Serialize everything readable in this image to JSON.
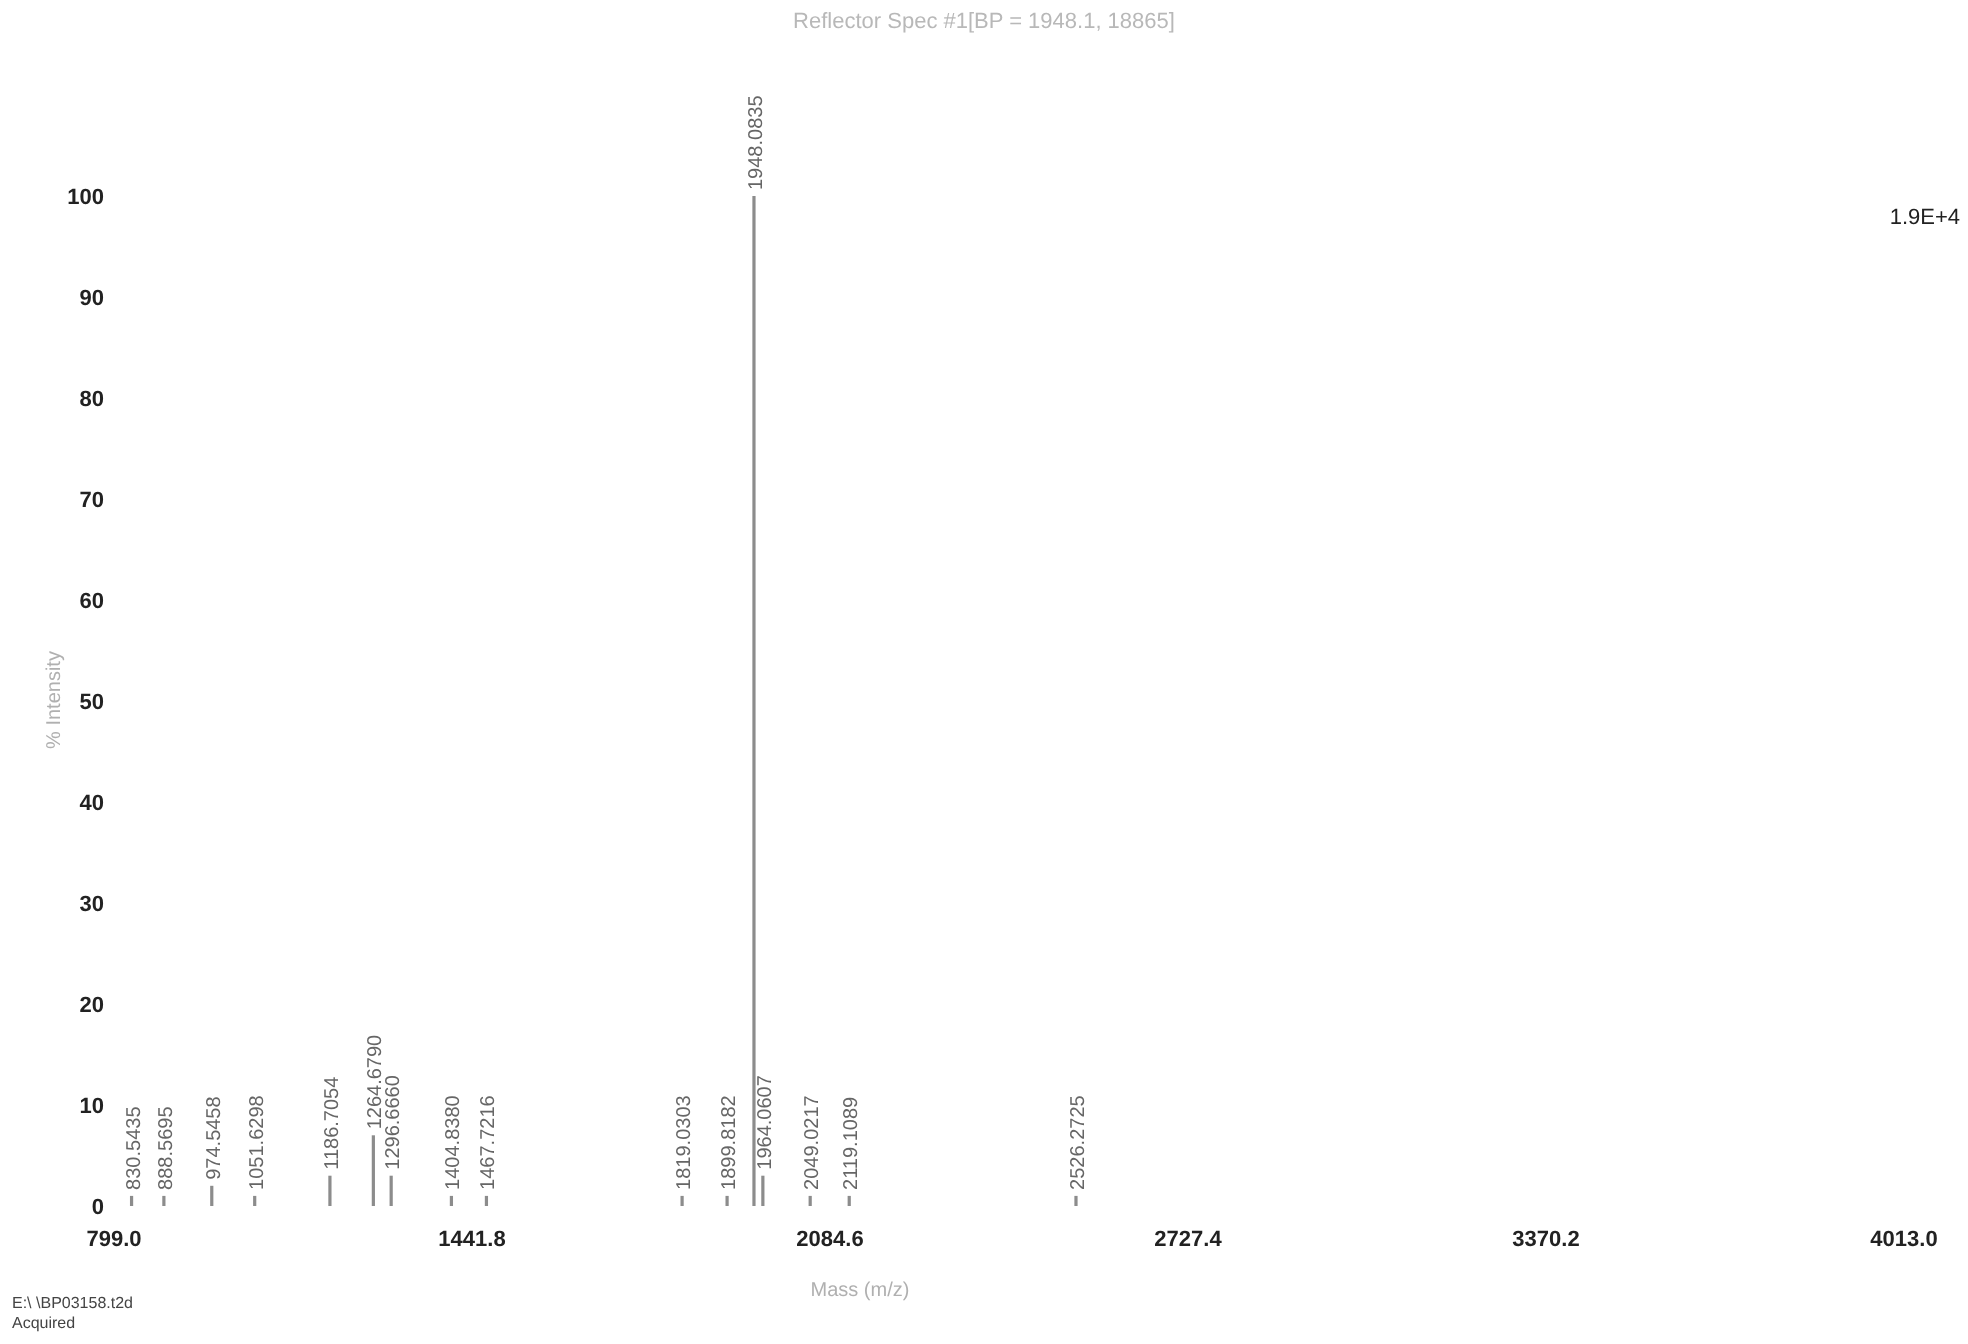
{
  "chart_data": {
    "type": "bar",
    "title": "Reflector Spec #1[BP = 1948.1, 18865]",
    "xlabel": "Mass (m/z)",
    "ylabel": "% Intensity",
    "x": [
      830.5435,
      888.5695,
      974.5458,
      1051.6298,
      1186.7054,
      1264.679,
      1296.666,
      1404.838,
      1467.7216,
      1819.0303,
      1899.8182,
      1948.0835,
      1964.0607,
      2049.0217,
      2119.1089,
      2526.2725
    ],
    "values": [
      1,
      1,
      2,
      1,
      3,
      7,
      3,
      1,
      1,
      1,
      1,
      100,
      3,
      1,
      1,
      1
    ],
    "color": "#8c8c8c",
    "xlim": [
      799,
      4013
    ],
    "xticks": [
      {
        "value": 799,
        "label": "799.0"
      },
      {
        "value": 1441.8,
        "label": "1441.8"
      },
      {
        "value": 2084.6,
        "label": "2084.6"
      },
      {
        "value": 2727.4,
        "label": "2727.4"
      },
      {
        "value": 3370.2,
        "label": "3370.2"
      },
      {
        "value": 4013,
        "label": "4013.0"
      }
    ],
    "ylim": [
      0,
      100
    ],
    "yticks": [
      0,
      10,
      20,
      30,
      40,
      50,
      60,
      70,
      80,
      90,
      100
    ],
    "grid": false,
    "annotations": [
      {
        "text": "830.5435",
        "x": 830.5435,
        "y": 1
      },
      {
        "text": "888.5695",
        "x": 888.5695,
        "y": 1
      },
      {
        "text": "974.5458",
        "x": 974.5458,
        "y": 2
      },
      {
        "text": "1051.6298",
        "x": 1051.6298,
        "y": 1
      },
      {
        "text": "1186.7054",
        "x": 1186.7054,
        "y": 3
      },
      {
        "text": "1264.6790",
        "x": 1264.679,
        "y": 7
      },
      {
        "text": "1296.6660",
        "x": 1296.666,
        "y": 3
      },
      {
        "text": "1404.8380",
        "x": 1404.838,
        "y": 1
      },
      {
        "text": "1467.7216",
        "x": 1467.7216,
        "y": 1
      },
      {
        "text": "1819.0303",
        "x": 1819.0303,
        "y": 1
      },
      {
        "text": "1899.8182",
        "x": 1899.8182,
        "y": 1
      },
      {
        "text": "1948.0835",
        "x": 1948.0835,
        "y": 100
      },
      {
        "text": "1964.0607",
        "x": 1964.0607,
        "y": 3
      },
      {
        "text": "2049.0217",
        "x": 2049.0217,
        "y": 1
      },
      {
        "text": "2119.1089",
        "x": 2119.1089,
        "y": 1
      },
      {
        "text": "2526.2725",
        "x": 2526.2725,
        "y": 1
      },
      "1.9E+4",
      "E:\\ \\BP03158.t2d",
      "Acquired"
    ]
  }
}
